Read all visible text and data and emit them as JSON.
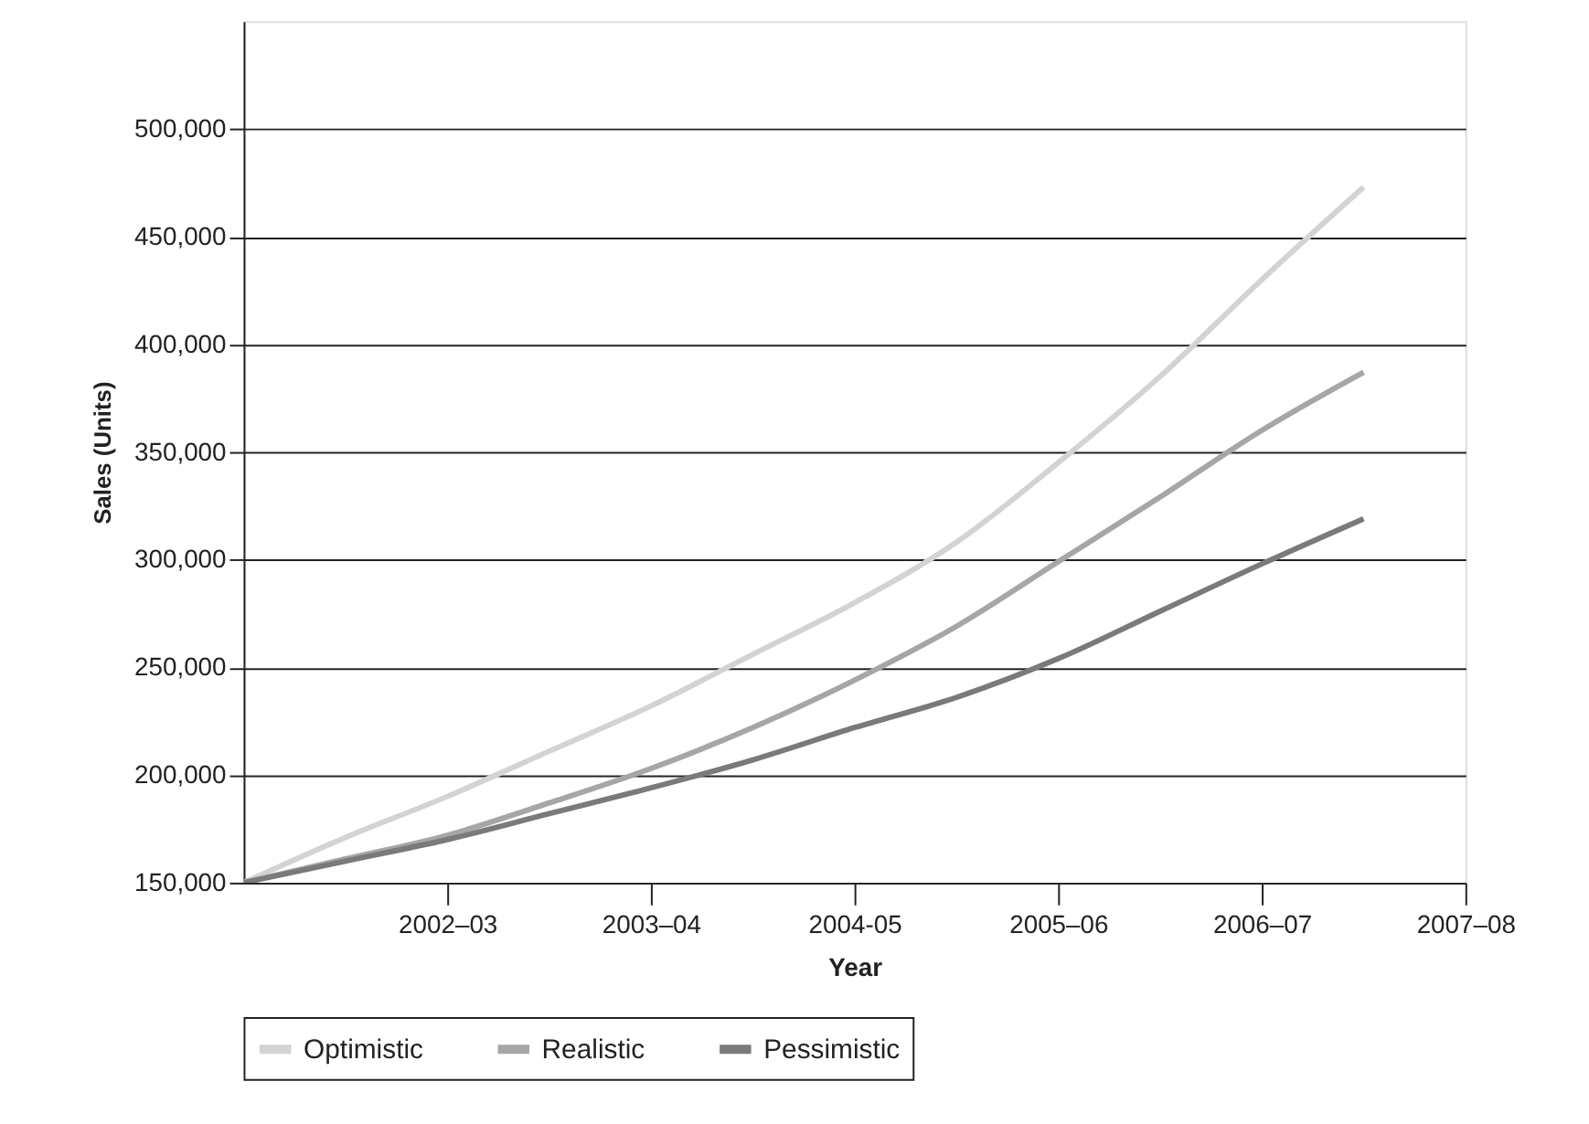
{
  "chart_data": {
    "type": "line",
    "xlabel": "Year",
    "ylabel": "Sales (Units)",
    "categories": [
      null,
      null,
      "2002–03",
      null,
      "2003–04",
      null,
      "2004-05",
      null,
      "2005–06",
      null,
      "2006–07",
      null,
      "2007–08"
    ],
    "ylim": [
      150000,
      550000
    ],
    "yticks": [
      {
        "value": 150000,
        "label": "150,000"
      },
      {
        "value": 200000,
        "label": "200,000"
      },
      {
        "value": 250000,
        "label": "250,000"
      },
      {
        "value": 300000,
        "label": "300,000"
      },
      {
        "value": 350000,
        "label": "350,000"
      },
      {
        "value": 400000,
        "label": "400,000"
      },
      {
        "value": 450000,
        "label": "450,000"
      },
      {
        "value": 500000,
        "label": "500,000"
      }
    ],
    "grid": "y",
    "legend": "bottom",
    "marker": "none",
    "line_style": "solid",
    "series": [
      {
        "name": "Optimistic",
        "color": "#d3d3d3",
        "values": [
          150000,
          171000,
          190000,
          211000,
          232000,
          256000,
          280000,
          308000,
          345000,
          385000,
          430000,
          473000,
          null
        ]
      },
      {
        "name": "Realistic",
        "color": "#a6a6a6",
        "values": [
          150000,
          161000,
          172000,
          187000,
          203000,
          222000,
          244000,
          269000,
          299000,
          329000,
          360000,
          387000,
          null
        ]
      },
      {
        "name": "Pessimistic",
        "color": "#7a7a7a",
        "values": [
          150000,
          160000,
          170000,
          182000,
          194000,
          207000,
          222000,
          236000,
          254000,
          276000,
          298000,
          319000,
          null
        ]
      }
    ]
  }
}
